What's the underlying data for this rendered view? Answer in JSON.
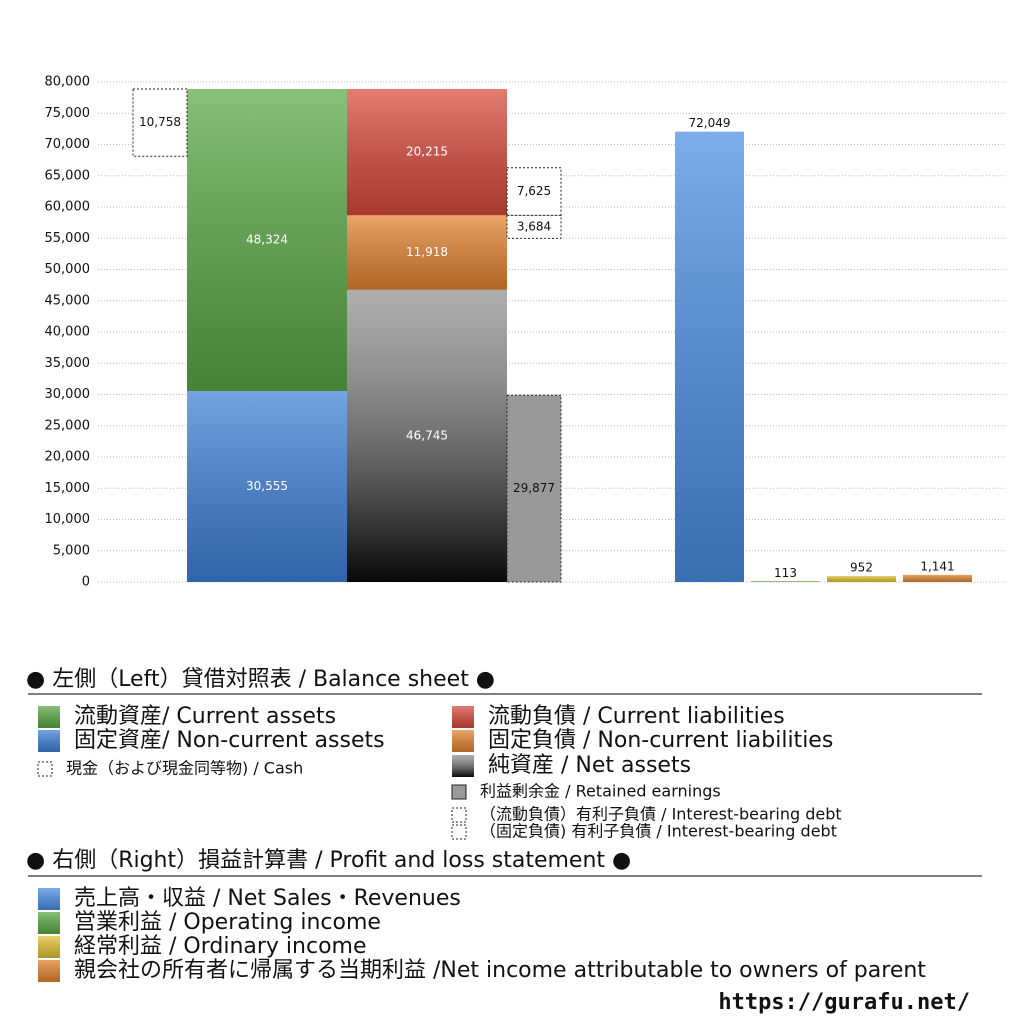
{
  "chart_data": {
    "type": "bar",
    "ylim": [
      0,
      80000
    ],
    "yticks": [
      0,
      {
        "value": 5000,
        "label": "5,000"
      },
      {
        "value": 10000,
        "label": "10,000"
      },
      {
        "value": 15000,
        "label": "15,000"
      },
      {
        "value": 20000,
        "label": "20,000"
      },
      {
        "value": 25000,
        "label": "25,000"
      },
      {
        "value": 30000,
        "label": "30,000"
      },
      {
        "value": 35000,
        "label": "35,000"
      },
      {
        "value": 40000,
        "label": "40,000"
      },
      {
        "value": 45000,
        "label": "45,000"
      },
      {
        "value": 50000,
        "label": "50,000"
      },
      {
        "value": 55000,
        "label": "55,000"
      },
      {
        "value": 60000,
        "label": "60,000"
      },
      {
        "value": 65000,
        "label": "65,000"
      },
      {
        "value": 70000,
        "label": "70,000"
      },
      {
        "value": 75000,
        "label": "75,000"
      },
      {
        "value": 80000,
        "label": "80,000"
      }
    ],
    "grid": true,
    "legend_left_title": "● 左側（Left）貸借対照表 / Balance sheet ●",
    "legend_right_title": "● 右側（Right）損益計算書 / Profit and loss statement ●",
    "series": [
      {
        "name": "流動資産/ Current assets",
        "color": "#5aa845",
        "values": [
          48324
        ],
        "value_labels": [
          "48,324"
        ]
      },
      {
        "name": "固定資産/ Non-current assets",
        "color": "#3f80d8",
        "values": [
          30555
        ],
        "value_labels": [
          "30,555"
        ]
      },
      {
        "name": "現金（および現金同等物) / Cash",
        "color": "#ffffff",
        "dashed": true,
        "values": [
          10758
        ],
        "value_labels": [
          "10,758"
        ]
      },
      {
        "name": "流動負債 /  Current liabilities",
        "color": "#d9493b",
        "values": [
          20215
        ],
        "value_labels": [
          "20,215"
        ]
      },
      {
        "name": "固定負債 / Non-current liabilities",
        "color": "#e3832f",
        "values": [
          11918
        ],
        "value_labels": [
          "11,918"
        ]
      },
      {
        "name": "純資産 / Net assets",
        "color": "#4a4a4a",
        "values": [
          46745
        ],
        "value_labels": [
          "46,745"
        ]
      },
      {
        "name": "利益剰余金 / Retained earnings",
        "color": "#999999",
        "values": [
          29877
        ],
        "value_labels": [
          "29,877"
        ]
      },
      {
        "name": "（流動負債）有利子負債 / Interest-bearing debt",
        "color": "#ffffff",
        "dashed": true,
        "values": [
          7625
        ],
        "value_labels": [
          "7,625"
        ]
      },
      {
        "name": "（固定負債) 有利子負債 / Interest-bearing debt",
        "color": "#ffffff",
        "dashed": true,
        "values": [
          3684
        ],
        "value_labels": [
          "3,684"
        ]
      },
      {
        "name": "売上高・収益 / Net Sales・Revenues",
        "color": "#4a8ee4",
        "values": [
          72049
        ],
        "value_labels": [
          "72,049"
        ]
      },
      {
        "name": "営業利益 / Operating income",
        "color": "#5aa845",
        "values": [
          113
        ]
      },
      {
        "name": "経常利益 / Ordinary income",
        "color": "#e2c030",
        "values": [
          952
        ]
      },
      {
        "name": "親会社の所有者に帰属する当期利益 /Net income attributable to owners of parent",
        "color": "#e3832f",
        "values": [
          1141
        ],
        "value_labels": [
          "1,141"
        ]
      }
    ],
    "footer": "https://gurafu.net/"
  }
}
